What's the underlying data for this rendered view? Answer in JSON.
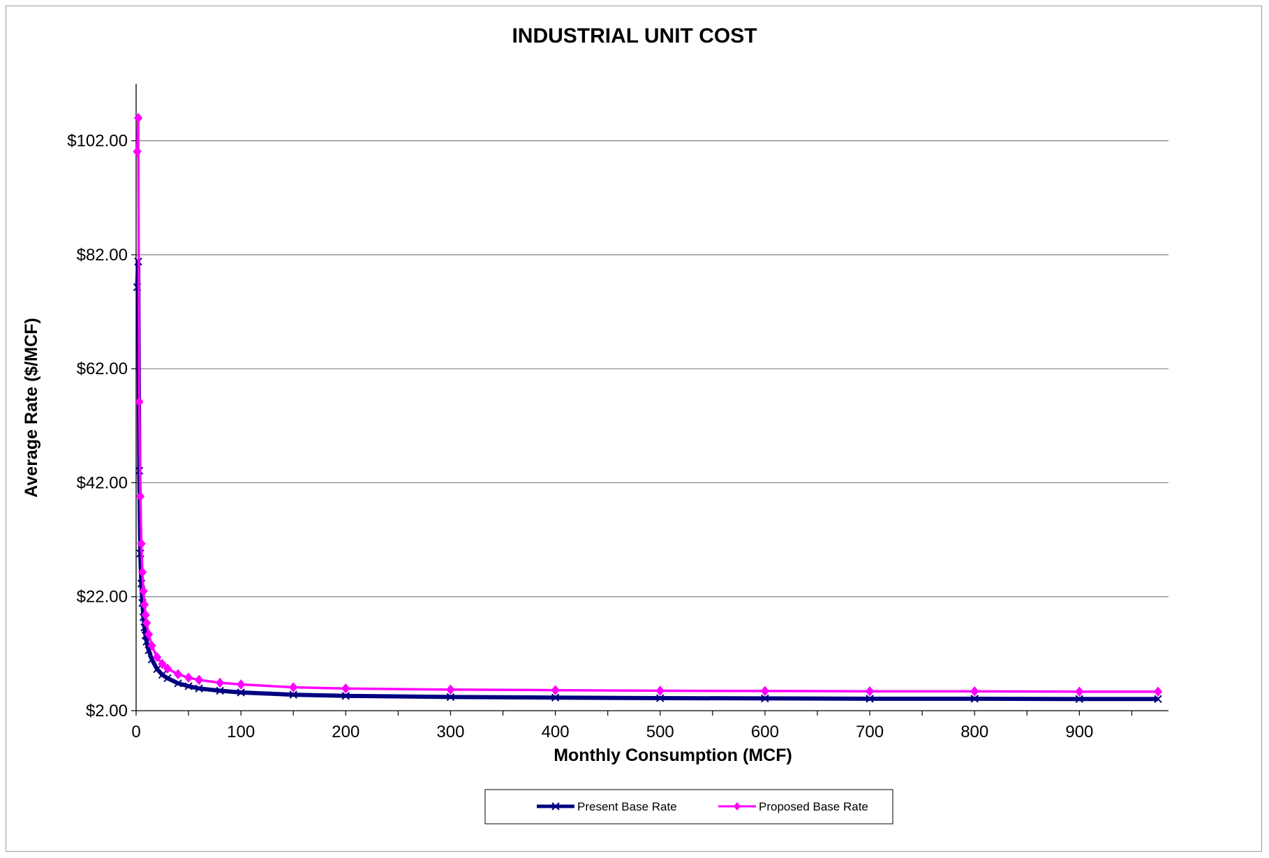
{
  "chart_data": {
    "type": "line",
    "title": "INDUSTRIAL UNIT COST",
    "xlabel": "Monthly Consumption (MCF)",
    "ylabel": "Average Rate ($/MCF)",
    "xlim": [
      0,
      985
    ],
    "ylim": [
      2,
      112
    ],
    "xticks": [
      0,
      100,
      200,
      300,
      400,
      500,
      600,
      700,
      800,
      900
    ],
    "xtick_labels": [
      "0",
      "100",
      "200",
      "300",
      "400",
      "500",
      "600",
      "700",
      "800",
      "900"
    ],
    "yticks": [
      2,
      22,
      42,
      62,
      82,
      102
    ],
    "ytick_labels": [
      "$2.00",
      "$22.00",
      "$42.00",
      "$62.00",
      "$82.00",
      "$102.00"
    ],
    "grid": "horizontal",
    "legend_position": "bottom",
    "series": [
      {
        "name": "Present Base Rate",
        "color": "#000080",
        "marker": "x",
        "x": [
          1,
          2,
          3,
          4,
          5,
          6,
          7,
          8,
          9,
          10,
          12,
          15,
          20,
          25,
          30,
          40,
          50,
          60,
          80,
          100,
          150,
          200,
          300,
          400,
          500,
          600,
          700,
          800,
          900,
          975
        ],
        "y": [
          76.3,
          80.8,
          44.1,
          29.6,
          24.3,
          20.9,
          18.4,
          16.6,
          15.2,
          14.1,
          12.6,
          11.0,
          9.3,
          8.3,
          7.7,
          6.8,
          6.3,
          5.9,
          5.5,
          5.2,
          4.8,
          4.6,
          4.4,
          4.3,
          4.2,
          4.15,
          4.1,
          4.1,
          4.05,
          4.05
        ]
      },
      {
        "name": "Proposed Base Rate",
        "color": "#FF00FF",
        "marker": "diamond",
        "x": [
          1,
          2,
          3,
          4,
          5,
          6,
          7,
          8,
          9,
          10,
          12,
          15,
          20,
          25,
          30,
          40,
          50,
          60,
          80,
          100,
          150,
          200,
          300,
          400,
          500,
          600,
          700,
          800,
          900,
          975
        ],
        "y": [
          100.1,
          106.0,
          56.2,
          39.6,
          31.3,
          26.3,
          23.0,
          20.6,
          18.8,
          17.4,
          15.4,
          13.4,
          11.4,
          10.2,
          9.4,
          8.4,
          7.8,
          7.4,
          6.9,
          6.6,
          6.1,
          5.9,
          5.7,
          5.6,
          5.5,
          5.45,
          5.4,
          5.4,
          5.35,
          5.35
        ]
      }
    ]
  }
}
